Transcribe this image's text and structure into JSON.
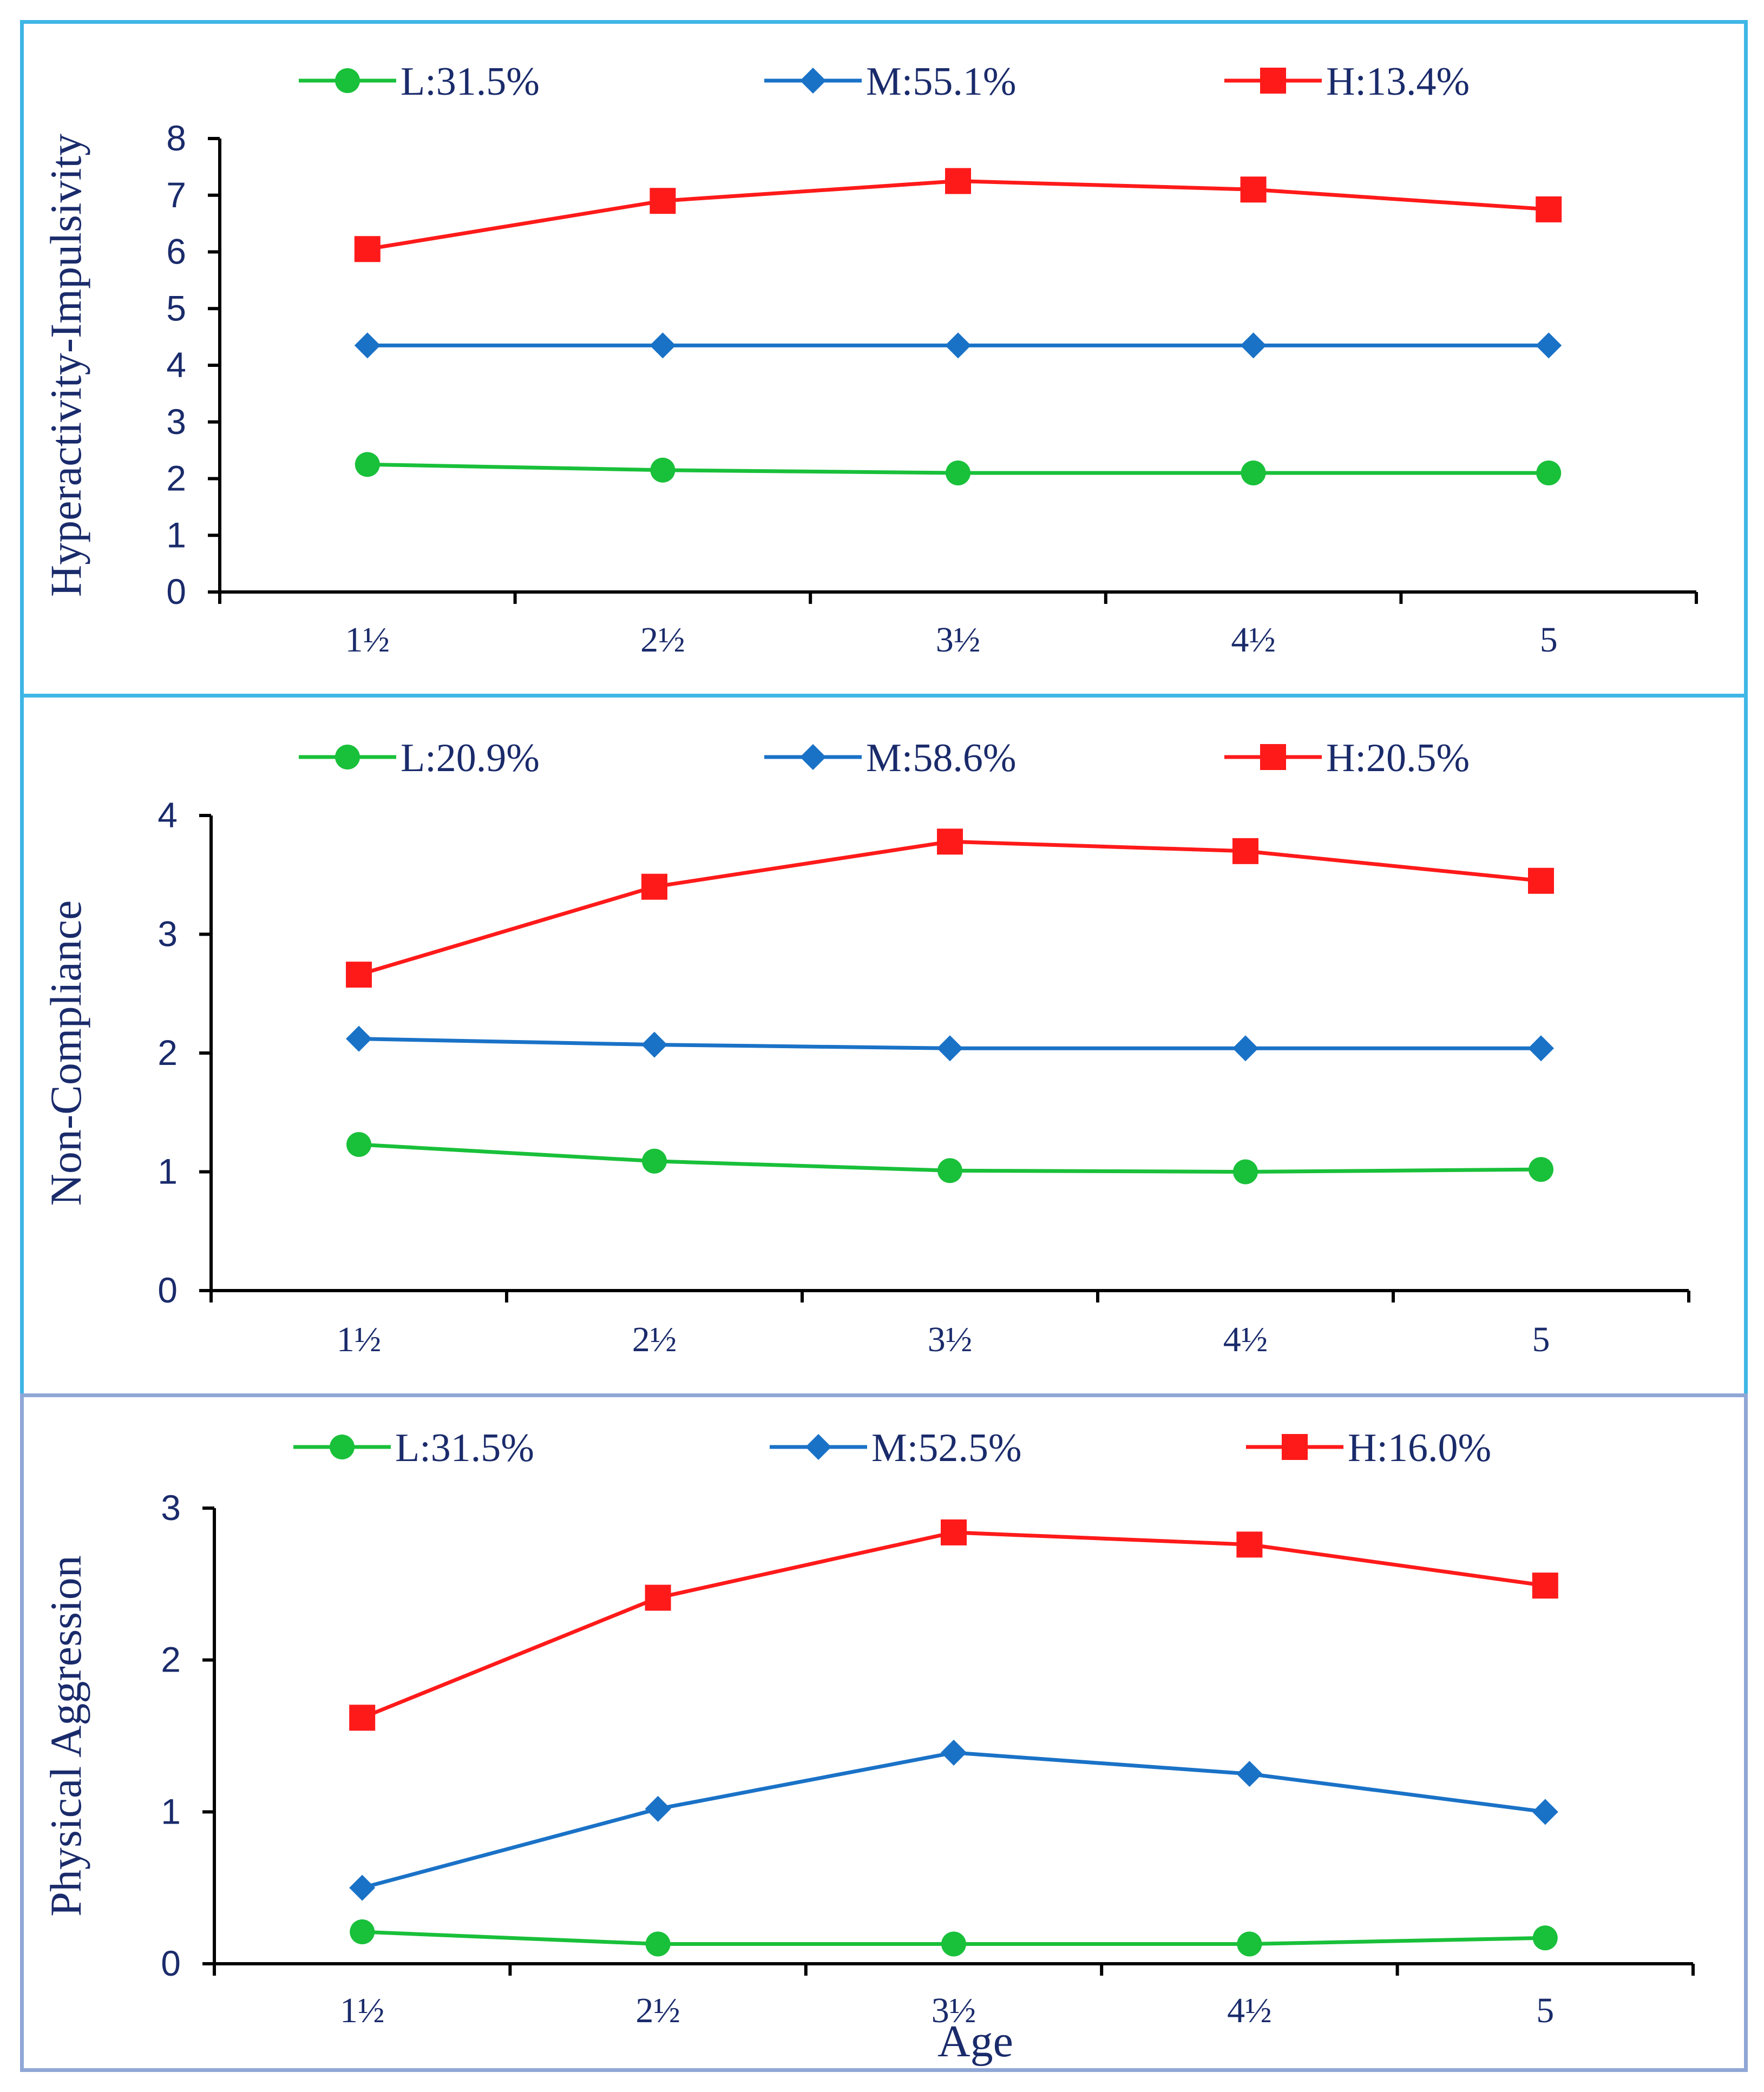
{
  "chart_data": [
    {
      "type": "line",
      "title": "",
      "xlabel": "",
      "ylabel": "Hyperactivity-Impulsivity",
      "categories": [
        "1½",
        "2½",
        "3½",
        "4½",
        "5"
      ],
      "ylim": [
        0,
        8
      ],
      "yticks": [
        "0",
        "1",
        "2",
        "3",
        "4",
        "5",
        "6",
        "7",
        "8"
      ],
      "legend_position": "top",
      "grid": false,
      "series": [
        {
          "name": "L:31.5%",
          "color": "#19c03a",
          "marker": "circle",
          "values": [
            2.25,
            2.15,
            2.1,
            2.1,
            2.1
          ]
        },
        {
          "name": "M:55.1%",
          "color": "#1a72c7",
          "marker": "diamond",
          "values": [
            4.35,
            4.35,
            4.35,
            4.35,
            4.35
          ]
        },
        {
          "name": "H:13.4%",
          "color": "#ff1a1a",
          "marker": "square",
          "values": [
            6.05,
            6.9,
            7.25,
            7.1,
            6.75
          ]
        }
      ]
    },
    {
      "type": "line",
      "title": "",
      "xlabel": "",
      "ylabel": "Non-Compliance",
      "categories": [
        "1½",
        "2½",
        "3½",
        "4½",
        "5"
      ],
      "ylim": [
        0,
        4
      ],
      "yticks": [
        "0",
        "1",
        "2",
        "3",
        "4"
      ],
      "legend_position": "top",
      "grid": false,
      "series": [
        {
          "name": "L:20.9%",
          "color": "#19c03a",
          "marker": "circle",
          "values": [
            1.23,
            1.09,
            1.01,
            1.0,
            1.02
          ]
        },
        {
          "name": "M:58.6%",
          "color": "#1a72c7",
          "marker": "diamond",
          "values": [
            2.12,
            2.07,
            2.04,
            2.04,
            2.04
          ]
        },
        {
          "name": "H:20.5%",
          "color": "#ff1a1a",
          "marker": "square",
          "values": [
            2.66,
            3.4,
            3.78,
            3.7,
            3.45
          ]
        }
      ]
    },
    {
      "type": "line",
      "title": "",
      "xlabel": "Age",
      "ylabel": "Physical Aggression",
      "categories": [
        "1½",
        "2½",
        "3½",
        "4½",
        "5"
      ],
      "ylim": [
        0,
        3
      ],
      "yticks": [
        "0",
        "1",
        "2",
        "3"
      ],
      "legend_position": "top",
      "grid": false,
      "series": [
        {
          "name": "L:31.5%",
          "color": "#19c03a",
          "marker": "circle",
          "values": [
            0.21,
            0.13,
            0.13,
            0.13,
            0.17
          ]
        },
        {
          "name": "M:52.5%",
          "color": "#1a72c7",
          "marker": "diamond",
          "values": [
            0.5,
            1.02,
            1.39,
            1.25,
            1.0
          ]
        },
        {
          "name": "H:16.0%",
          "color": "#ff1a1a",
          "marker": "square",
          "values": [
            1.62,
            2.41,
            2.84,
            2.76,
            2.49
          ]
        }
      ]
    }
  ]
}
